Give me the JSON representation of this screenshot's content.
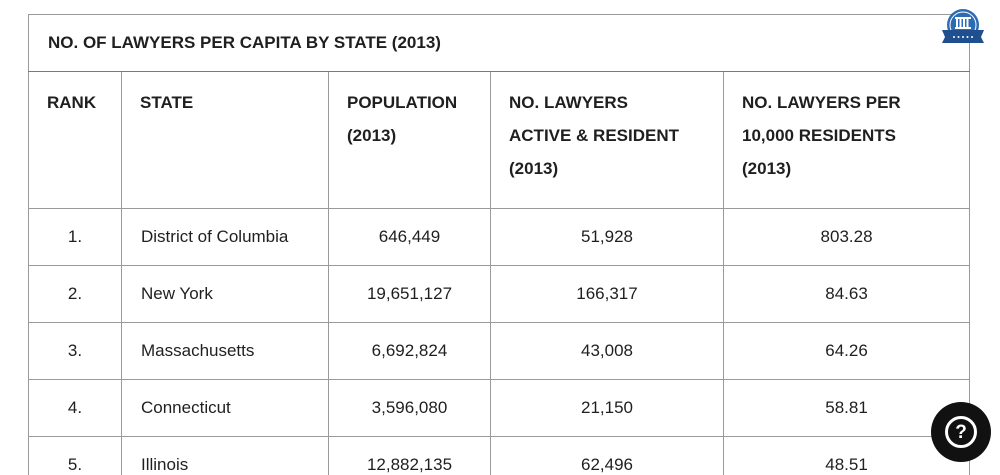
{
  "table": {
    "caption": "NO. OF LAWYERS PER CAPITA BY STATE (2013)",
    "headers": [
      {
        "lines": [
          "RANK"
        ]
      },
      {
        "lines": [
          "STATE"
        ]
      },
      {
        "lines": [
          "POPULATION",
          "(2013)"
        ]
      },
      {
        "lines": [
          "NO. LAWYERS",
          "ACTIVE & RESIDENT",
          "(2013)"
        ]
      },
      {
        "lines": [
          "NO. LAWYERS PER",
          "10,000 RESIDENTS",
          "(2013)"
        ]
      }
    ],
    "rows": [
      {
        "rank": "1.",
        "state": "District of Columbia",
        "population": "646,449",
        "lawyers": "51,928",
        "per_10000": "803.28"
      },
      {
        "rank": "2.",
        "state": "New York",
        "population": "19,651,127",
        "lawyers": "166,317",
        "per_10000": "84.63"
      },
      {
        "rank": "3.",
        "state": "Massachusetts",
        "population": "6,692,824",
        "lawyers": "43,008",
        "per_10000": "64.26"
      },
      {
        "rank": "4.",
        "state": "Connecticut",
        "population": "3,596,080",
        "lawyers": "21,150",
        "per_10000": "58.81"
      },
      {
        "rank": "5.",
        "state": "Illinois",
        "population": "12,882,135",
        "lawyers": "62,496",
        "per_10000": "48.51"
      }
    ]
  },
  "badge": {
    "icon": "award-badge-icon",
    "color": "#2d6cb5"
  },
  "help_button": {
    "icon": "question-mark-icon",
    "symbol": "?"
  }
}
